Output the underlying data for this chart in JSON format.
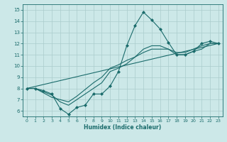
{
  "xlabel": "Humidex (Indice chaleur)",
  "xlim": [
    -0.5,
    23.5
  ],
  "ylim": [
    5.5,
    15.5
  ],
  "yticks": [
    6,
    7,
    8,
    9,
    10,
    11,
    12,
    13,
    14,
    15
  ],
  "xticks": [
    0,
    1,
    2,
    3,
    4,
    5,
    6,
    7,
    8,
    9,
    10,
    11,
    12,
    13,
    14,
    15,
    16,
    17,
    18,
    19,
    20,
    21,
    22,
    23
  ],
  "bg_color": "#cce8e8",
  "line_color": "#1a6b6b",
  "grid_color": "#aacccc",
  "lines": [
    {
      "x": [
        0,
        1,
        2,
        3,
        4,
        5,
        6,
        7,
        8,
        9,
        10,
        11,
        12,
        13,
        14,
        15,
        16,
        17,
        18,
        19,
        20,
        21,
        22,
        23
      ],
      "y": [
        8.0,
        8.0,
        7.8,
        7.5,
        6.2,
        5.7,
        6.3,
        6.5,
        7.5,
        7.5,
        8.2,
        9.5,
        11.8,
        13.6,
        14.8,
        14.1,
        13.3,
        12.1,
        11.0,
        11.0,
        11.3,
        12.0,
        12.2,
        12.0
      ],
      "marker": "D",
      "lw": 0.8
    },
    {
      "x": [
        0,
        1,
        2,
        3,
        4,
        5,
        6,
        7,
        8,
        9,
        10,
        11,
        12,
        13,
        14,
        15,
        16,
        17,
        18,
        19,
        20,
        21,
        22,
        23
      ],
      "y": [
        8.0,
        8.0,
        7.7,
        7.4,
        6.8,
        6.5,
        7.0,
        7.5,
        8.0,
        8.5,
        9.5,
        9.8,
        10.2,
        10.8,
        11.5,
        11.8,
        11.8,
        11.5,
        11.0,
        11.0,
        11.3,
        11.5,
        12.0,
        12.0
      ],
      "marker": null,
      "lw": 0.8
    },
    {
      "x": [
        0,
        1,
        2,
        3,
        4,
        5,
        6,
        7,
        8,
        9,
        10,
        11,
        12,
        13,
        14,
        15,
        16,
        17,
        18,
        19,
        20,
        21,
        22,
        23
      ],
      "y": [
        8.0,
        8.0,
        7.6,
        7.2,
        7.0,
        6.8,
        7.3,
        7.9,
        8.5,
        9.0,
        9.8,
        10.1,
        10.5,
        10.8,
        11.2,
        11.5,
        11.5,
        11.5,
        11.2,
        11.2,
        11.5,
        11.8,
        12.0,
        12.0
      ],
      "marker": null,
      "lw": 0.8
    },
    {
      "x": [
        0,
        23
      ],
      "y": [
        8.0,
        12.0
      ],
      "marker": null,
      "lw": 0.8
    }
  ]
}
